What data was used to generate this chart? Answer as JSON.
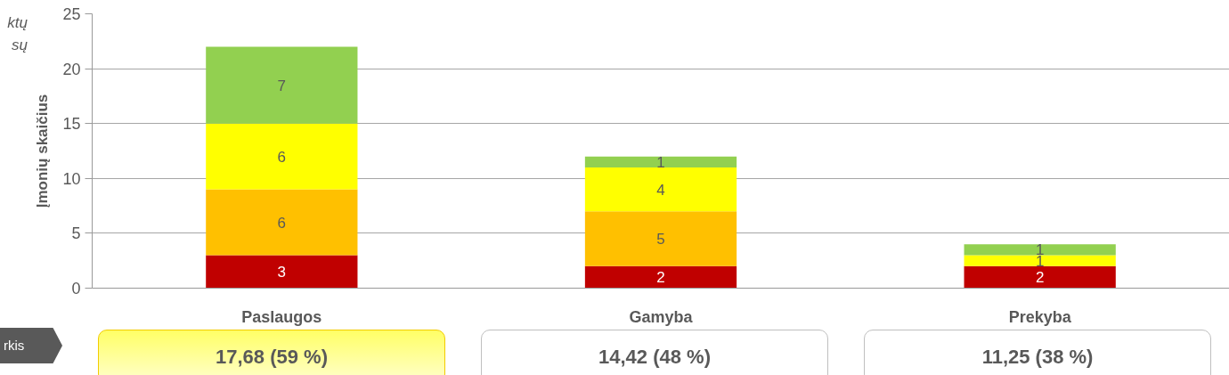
{
  "chart_data": {
    "type": "bar",
    "stacked": true,
    "ylabel": "Įmonių skaičius",
    "categories": [
      "Paslaugos",
      "Gamyba",
      "Prekyba"
    ],
    "series": [
      {
        "color": "#c00000",
        "values": [
          3,
          2,
          2
        ],
        "value_labels": [
          "3",
          "2",
          "2"
        ]
      },
      {
        "color": "#ffc000",
        "values": [
          6,
          5,
          0
        ],
        "value_labels": [
          "6",
          "5",
          null
        ]
      },
      {
        "color": "#ffff00",
        "values": [
          6,
          4,
          1
        ],
        "value_labels": [
          "6",
          "4",
          "1"
        ]
      },
      {
        "color": "#92d050",
        "values": [
          7,
          1,
          1
        ],
        "value_labels": [
          "7",
          "1",
          "1"
        ]
      }
    ],
    "ylim": [
      0,
      25
    ],
    "yticks": [
      0,
      5,
      10,
      15,
      20,
      25
    ],
    "grid": "y",
    "annotations": [
      "ktų",
      "sų",
      "rkis",
      "17,68 (59 %)",
      "14,42 (48 %)",
      "11,25 (38 %)"
    ]
  }
}
